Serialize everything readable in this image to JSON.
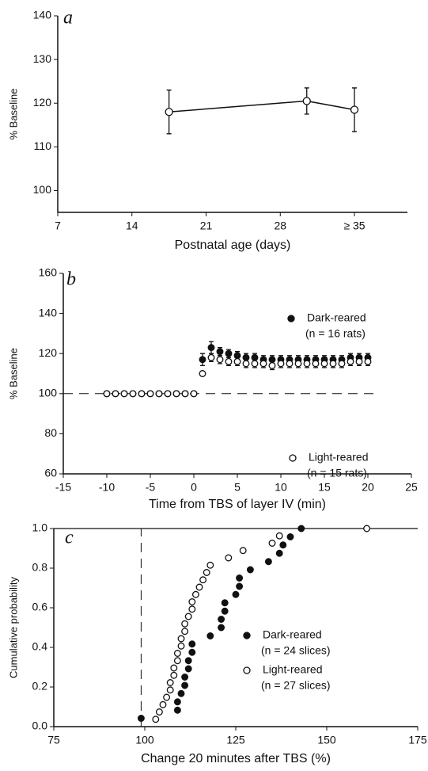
{
  "chart_data": [
    {
      "type": "line",
      "panel_label": "a",
      "xlabel": "Postnatal age (days)",
      "ylabel": "% Baseline",
      "x": [
        17.5,
        30.5,
        35
      ],
      "series": [
        {
          "marker": "open",
          "color": "#111111",
          "values": [
            118,
            120.5,
            118.5
          ],
          "errors": [
            5,
            3,
            5
          ]
        }
      ],
      "xlim": [
        7,
        40
      ],
      "xticks": [
        7,
        14,
        21,
        28,
        {
          "value": 35,
          "label": "≥ 35"
        }
      ],
      "ylim": [
        95,
        140
      ],
      "yticks": [
        100,
        110,
        120,
        130,
        140
      ]
    },
    {
      "type": "scatter",
      "panel_label": "b",
      "xlabel": "Time from TBS of layer IV (min)",
      "ylabel": "% Baseline",
      "x": [
        -10,
        -9,
        -8,
        -7,
        -6,
        -5,
        -4,
        -3,
        -2,
        -1,
        0,
        1,
        2,
        3,
        4,
        5,
        6,
        7,
        8,
        9,
        10,
        11,
        12,
        13,
        14,
        15,
        16,
        17,
        18,
        19,
        20
      ],
      "series": [
        {
          "name": "Dark-reared",
          "note": "(n = 16 rats)",
          "marker": "filled",
          "color": "#111111",
          "values": [
            100,
            100,
            100,
            100,
            100,
            100,
            100,
            100,
            100,
            100,
            100,
            117,
            123,
            121,
            120,
            119,
            118,
            118,
            117,
            117,
            117,
            117,
            117,
            117,
            117,
            117,
            117,
            117,
            118,
            118,
            118
          ],
          "errors": [
            1,
            1,
            1,
            1,
            1,
            1,
            1,
            1,
            1,
            1,
            1,
            3,
            3,
            2,
            2,
            2,
            2,
            2,
            2,
            2,
            2,
            2,
            2,
            2,
            2,
            2,
            2,
            2,
            2,
            2,
            2
          ]
        },
        {
          "name": "Light-reared",
          "note": "(n = 15 rats)",
          "marker": "open",
          "color": "#111111",
          "values": [
            100,
            100,
            100,
            100,
            100,
            100,
            100,
            100,
            100,
            100,
            100,
            110,
            118,
            117,
            116,
            116,
            115,
            115,
            115,
            114,
            115,
            115,
            115,
            115,
            115,
            115,
            115,
            115,
            116,
            116,
            116
          ],
          "errors": [
            1,
            1,
            1,
            1,
            1,
            1,
            1,
            1,
            1,
            1,
            1,
            1,
            2,
            2,
            2,
            2,
            2,
            2,
            2,
            2,
            2,
            2,
            2,
            2,
            2,
            2,
            2,
            2,
            2,
            2,
            2
          ]
        }
      ],
      "hline": 100,
      "xlim": [
        -15,
        25
      ],
      "xticks": [
        -15,
        -10,
        -5,
        0,
        5,
        10,
        15,
        20,
        25
      ],
      "ylim": [
        60,
        160
      ],
      "yticks": [
        60,
        80,
        100,
        120,
        140,
        160
      ]
    },
    {
      "type": "scatter",
      "panel_label": "c",
      "xlabel": "Change 20 minutes after TBS (%)",
      "ylabel": "Cumulative probability",
      "series": [
        {
          "name": "Dark-reared",
          "note": "(n = 24 slices)",
          "marker": "filled",
          "color": "#111111",
          "x": [
            99,
            109,
            109,
            110,
            111,
            111,
            112,
            112,
            113,
            113,
            118,
            121,
            121,
            122,
            122,
            125,
            126,
            126,
            129,
            134,
            137,
            138,
            140,
            143
          ],
          "values": [
            0.042,
            0.083,
            0.125,
            0.167,
            0.208,
            0.25,
            0.292,
            0.333,
            0.375,
            0.417,
            0.458,
            0.5,
            0.542,
            0.583,
            0.625,
            0.667,
            0.708,
            0.75,
            0.792,
            0.833,
            0.875,
            0.917,
            0.958,
            1.0
          ]
        },
        {
          "name": "Light-reared",
          "note": "(n = 27 slices)",
          "marker": "open",
          "color": "#111111",
          "x": [
            103,
            104,
            105,
            106,
            107,
            107,
            108,
            108,
            109,
            109,
            110,
            110,
            111,
            111,
            112,
            113,
            113,
            114,
            115,
            116,
            117,
            118,
            123,
            127,
            135,
            137,
            161
          ],
          "values": [
            0.037,
            0.074,
            0.111,
            0.148,
            0.185,
            0.222,
            0.259,
            0.296,
            0.333,
            0.37,
            0.407,
            0.444,
            0.481,
            0.519,
            0.556,
            0.593,
            0.63,
            0.667,
            0.704,
            0.741,
            0.778,
            0.815,
            0.852,
            0.889,
            0.926,
            0.963,
            1.0
          ]
        }
      ],
      "vline": 99,
      "xlim": [
        75,
        175
      ],
      "xticks": [
        75,
        100,
        125,
        150,
        175
      ],
      "ylim": [
        0,
        1
      ],
      "yticks": [
        {
          "value": 0,
          "label": "0.0"
        },
        0.2,
        0.4,
        0.6,
        0.8,
        {
          "value": 1,
          "label": "1.0"
        }
      ]
    }
  ]
}
